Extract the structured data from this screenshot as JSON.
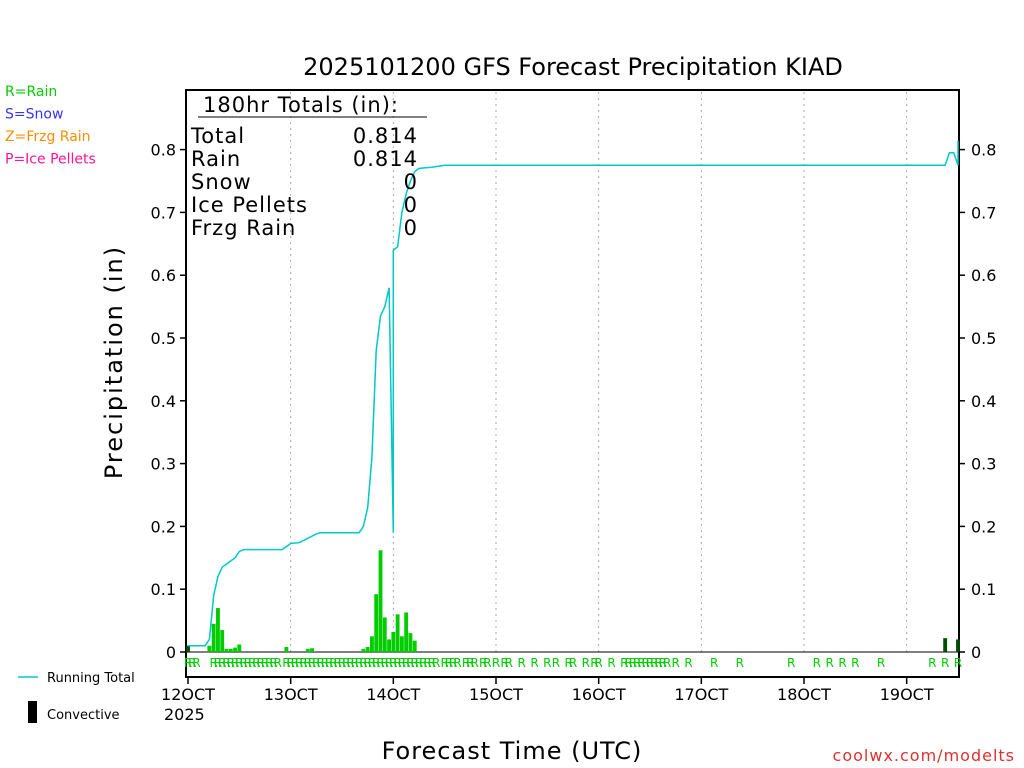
{
  "chart_data": {
    "type": "line",
    "title": "2025101200 GFS Forecast Precipitation KIAD",
    "xlabel": "Forecast Time (UTC)",
    "ylabel": "Precipitation (in)",
    "ylim": [
      0,
      0.9
    ],
    "xlim_hours": [
      0,
      180
    ],
    "y_ticks": [
      "0",
      "0.1",
      "0.2",
      "0.3",
      "0.4",
      "0.5",
      "0.6",
      "0.7",
      "0.8"
    ],
    "y_tick_values": [
      0,
      0.1,
      0.2,
      0.3,
      0.4,
      0.5,
      0.6,
      0.7,
      0.8
    ],
    "x_ticks": [
      "12OCT",
      "13OCT",
      "14OCT",
      "15OCT",
      "16OCT",
      "17OCT",
      "18OCT",
      "19OCT"
    ],
    "x_tick_hours": [
      0,
      24,
      48,
      72,
      96,
      120,
      144,
      168
    ],
    "year_label": "2025",
    "totals_box": {
      "header": "180hr Totals (in):",
      "rows": [
        {
          "label": "Total",
          "value": "0.814"
        },
        {
          "label": "Rain",
          "value": "0.814"
        },
        {
          "label": "Snow",
          "value": "0"
        },
        {
          "label": "Ice Pellets",
          "value": "0"
        },
        {
          "label": "Frzg Rain",
          "value": "0"
        }
      ]
    },
    "ptype_legend": [
      {
        "label": "R=Rain",
        "color": "#00cc00"
      },
      {
        "label": "S=Snow",
        "color": "#3333ff"
      },
      {
        "label": "Z=Frzg Rain",
        "color": "#ff8c00"
      },
      {
        "label": "P=Ice Pellets",
        "color": "#ff1493"
      }
    ],
    "series_legend": {
      "running_total": "Running Total",
      "convective": "Convective"
    },
    "running_total": {
      "color": "#00c8c8",
      "hours": [
        0,
        4,
        5,
        6,
        7,
        8,
        9,
        10,
        11,
        12,
        13,
        14,
        22,
        23,
        24,
        26,
        30,
        31,
        48,
        40,
        41,
        42,
        43,
        44,
        45,
        46,
        47,
        48,
        49,
        50,
        51,
        52,
        53,
        54,
        57,
        60,
        180,
        177,
        178,
        179,
        180
      ],
      "values": [
        0.01,
        0.01,
        0.02,
        0.09,
        0.12,
        0.135,
        0.14,
        0.145,
        0.15,
        0.16,
        0.163,
        0.163,
        0.163,
        0.168,
        0.173,
        0.174,
        0.188,
        0.19,
        0.19,
        0.19,
        0.2,
        0.23,
        0.31,
        0.48,
        0.535,
        0.55,
        0.58,
        0.64,
        0.645,
        0.7,
        0.73,
        0.75,
        0.765,
        0.77,
        0.772,
        0.775,
        0.775,
        0.775,
        0.795,
        0.795,
        0.814
      ]
    },
    "bars": {
      "color": "#00cc00",
      "hours": [
        5,
        6,
        7,
        8,
        9,
        10,
        11,
        12,
        23,
        28,
        29,
        41,
        42,
        43,
        44,
        45,
        46,
        47,
        48,
        49,
        50,
        51,
        52,
        53
      ],
      "values": [
        0.01,
        0.045,
        0.07,
        0.035,
        0.005,
        0.005,
        0.007,
        0.012,
        0.008,
        0.005,
        0.006,
        0.005,
        0.008,
        0.025,
        0.092,
        0.162,
        0.055,
        0.02,
        0.032,
        0.06,
        0.025,
        0.063,
        0.03,
        0.018
      ]
    },
    "convective_bars": {
      "color": "#004d00",
      "hours": [
        0,
        177,
        180
      ],
      "values": [
        0.01,
        0.022,
        0.02
      ]
    },
    "ptype_markers": {
      "symbol": "R",
      "color": "#00cc00",
      "hours": [
        0,
        1,
        2,
        6,
        7,
        8,
        9,
        10,
        11,
        12,
        13,
        14,
        15,
        16,
        17,
        18,
        19,
        20,
        21,
        23,
        24,
        25,
        26,
        27,
        28,
        29,
        30,
        31,
        32,
        33,
        34,
        35,
        36,
        37,
        38,
        39,
        40,
        41,
        42,
        43,
        44,
        45,
        46,
        47,
        48,
        49,
        50,
        51,
        52,
        53,
        54,
        55,
        56,
        57,
        58,
        60,
        61,
        62,
        63,
        65,
        66,
        67,
        69,
        70,
        72,
        74,
        75,
        78,
        81,
        84,
        86,
        89,
        90,
        93,
        95,
        96,
        99,
        102,
        103,
        104,
        105,
        106,
        107,
        108,
        109,
        110,
        111,
        112,
        114,
        117,
        123,
        129,
        141,
        147,
        150,
        153,
        156,
        162,
        174,
        177,
        180
      ]
    },
    "watermark": "coolwx.com/modelts"
  }
}
